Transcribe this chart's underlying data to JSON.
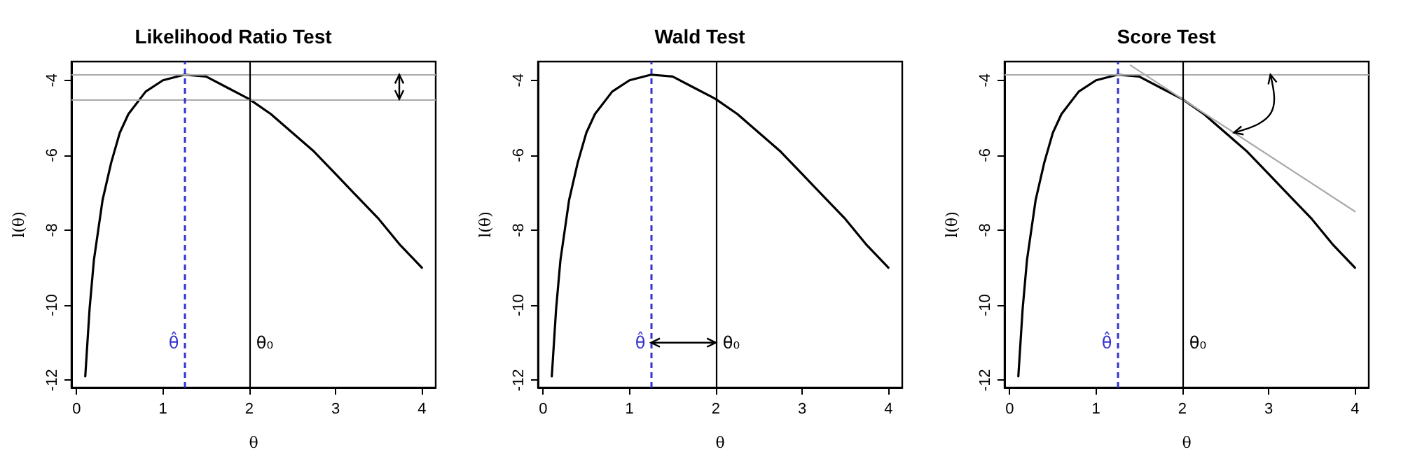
{
  "chart_data": [
    {
      "type": "line",
      "title": "Likelihood Ratio Test",
      "xlabel": "θ",
      "ylabel": "l(θ)",
      "x": [
        0.1,
        0.15,
        0.2,
        0.3,
        0.4,
        0.5,
        0.6,
        0.8,
        1.0,
        1.25,
        1.5,
        1.75,
        2,
        2.25,
        2.5,
        2.75,
        3,
        3.25,
        3.5,
        3.75,
        4
      ],
      "series": [
        {
          "color": "#000000",
          "values": [
            -11.9,
            -10.1,
            -8.8,
            -7.2,
            -6.2,
            -5.4,
            -4.9,
            -4.3,
            -4.0,
            -3.85,
            -3.9,
            -4.2,
            -4.5,
            -4.9,
            -5.4,
            -5.9,
            -6.5,
            -7.1,
            -7.7,
            -8.4,
            -9.0
          ]
        }
      ],
      "xlim": [
        -0.06,
        4.16
      ],
      "xticks": [
        0,
        1,
        2,
        3,
        4
      ],
      "ylim": [
        -12.2,
        -3.5
      ],
      "yticks": [
        -12,
        -10,
        -8,
        -6,
        -4
      ],
      "ref_lines": [
        {
          "axis": "y",
          "value": -3.85,
          "color": "#aaaaaa"
        },
        {
          "axis": "y",
          "value": -4.5,
          "color": "#aaaaaa"
        },
        {
          "axis": "x",
          "value": 1.25,
          "color": "#3333cc",
          "line_style": "dashed",
          "label": "θ̂"
        },
        {
          "axis": "x",
          "value": 2,
          "color": "#000000",
          "label": "θ₀"
        }
      ],
      "grid": false
    },
    {
      "type": "line",
      "title": "Wald Test",
      "xlabel": "θ",
      "ylabel": "l(θ)",
      "x": [
        0.1,
        0.15,
        0.2,
        0.3,
        0.4,
        0.5,
        0.6,
        0.8,
        1.0,
        1.25,
        1.5,
        1.75,
        2,
        2.25,
        2.5,
        2.75,
        3,
        3.25,
        3.5,
        3.75,
        4
      ],
      "series": [
        {
          "color": "#000000",
          "values": [
            -11.9,
            -10.1,
            -8.8,
            -7.2,
            -6.2,
            -5.4,
            -4.9,
            -4.3,
            -4.0,
            -3.85,
            -3.9,
            -4.2,
            -4.5,
            -4.9,
            -5.4,
            -5.9,
            -6.5,
            -7.1,
            -7.7,
            -8.4,
            -9.0
          ]
        }
      ],
      "xlim": [
        -0.06,
        4.16
      ],
      "xticks": [
        0,
        1,
        2,
        3,
        4
      ],
      "ylim": [
        -12.2,
        -3.5
      ],
      "yticks": [
        -12,
        -10,
        -8,
        -6,
        -4
      ],
      "ref_lines": [
        {
          "axis": "x",
          "value": 1.25,
          "color": "#3333cc",
          "line_style": "dashed",
          "label": "θ̂"
        },
        {
          "axis": "x",
          "value": 2,
          "color": "#000000",
          "label": "θ₀"
        }
      ],
      "grid": false
    },
    {
      "type": "line",
      "title": "Score Test",
      "xlabel": "θ",
      "ylabel": "l(θ)",
      "x": [
        0.1,
        0.15,
        0.2,
        0.3,
        0.4,
        0.5,
        0.6,
        0.8,
        1.0,
        1.25,
        1.5,
        1.75,
        2,
        2.25,
        2.5,
        2.75,
        3,
        3.25,
        3.5,
        3.75,
        4
      ],
      "series": [
        {
          "color": "#000000",
          "values": [
            -11.9,
            -10.1,
            -8.8,
            -7.2,
            -6.2,
            -5.4,
            -4.9,
            -4.3,
            -4.0,
            -3.85,
            -3.9,
            -4.2,
            -4.5,
            -4.9,
            -5.4,
            -5.9,
            -6.5,
            -7.1,
            -7.7,
            -8.4,
            -9.0
          ]
        },
        {
          "color": "#aaaaaa",
          "x": [
            1.4,
            4
          ],
          "values": [
            -3.6,
            -7.5
          ]
        }
      ],
      "xlim": [
        -0.06,
        4.16
      ],
      "xticks": [
        0,
        1,
        2,
        3,
        4
      ],
      "ylim": [
        -12.2,
        -3.5
      ],
      "yticks": [
        -12,
        -10,
        -8,
        -6,
        -4
      ],
      "ref_lines": [
        {
          "axis": "y",
          "value": -3.85,
          "color": "#aaaaaa"
        },
        {
          "axis": "x",
          "value": 1.25,
          "color": "#3333cc",
          "line_style": "dashed",
          "label": "θ̂"
        },
        {
          "axis": "x",
          "value": 2,
          "color": "#000000",
          "label": "θ₀"
        }
      ],
      "grid": false
    }
  ]
}
